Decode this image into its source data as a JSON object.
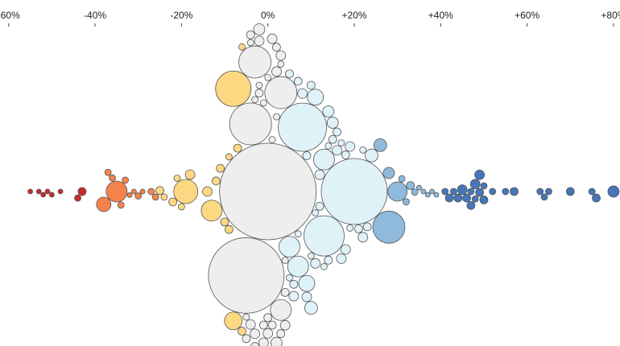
{
  "chart_data": {
    "type": "beeswarm",
    "xlim": [
      -62,
      81.5
    ],
    "xticks": [
      {
        "value": -60,
        "label": "-60%"
      },
      {
        "value": -40,
        "label": "-40%"
      },
      {
        "value": -20,
        "label": "-20%"
      },
      {
        "value": 0,
        "label": "0%"
      },
      {
        "value": 20,
        "label": "+20%"
      },
      {
        "value": 40,
        "label": "+40%"
      },
      {
        "value": 60,
        "label": "+60%"
      },
      {
        "value": 80,
        "label": "+80%"
      }
    ],
    "color_thresholds": [
      -40,
      -25,
      -5,
      5,
      25,
      40
    ],
    "colors": [
      "#c62a2a",
      "#f4834b",
      "#fdd882",
      "#eeeeee",
      "#dff2f8",
      "#8fbadb",
      "#4676b8"
    ],
    "values": [
      0,
      -5,
      20,
      8,
      -4,
      -8,
      -3,
      3,
      28,
      13,
      -19,
      -35,
      -13,
      30,
      13,
      5,
      3,
      7,
      -8,
      -38,
      9,
      11,
      24,
      26,
      28,
      80,
      -43,
      70,
      75,
      65,
      -6,
      -5,
      -4,
      -3,
      -2,
      -1,
      0,
      1,
      2,
      3,
      4,
      5,
      -5,
      -4,
      -3,
      -2,
      -1,
      0,
      1,
      2,
      3,
      4,
      -6,
      -2,
      0,
      2,
      4,
      -1,
      1,
      -3,
      5,
      3,
      -4,
      0,
      -2,
      2,
      6,
      7,
      8,
      9,
      10,
      11,
      12,
      14,
      15,
      16,
      17,
      18,
      19,
      21,
      22,
      6,
      7,
      9,
      10,
      12,
      14,
      16,
      18,
      11,
      13,
      15,
      17,
      19,
      10,
      14,
      22,
      23,
      32,
      33,
      31,
      34,
      35,
      36,
      37,
      38,
      39,
      41,
      42,
      43,
      44,
      45,
      46,
      47,
      48,
      49,
      50,
      47,
      48,
      49,
      50,
      52,
      55,
      57,
      63,
      64,
      76,
      -55,
      -53,
      -52,
      -51,
      -50,
      -48,
      -44,
      -36,
      -34,
      -33,
      -32,
      -31,
      -30,
      -29,
      -27,
      -26,
      -25,
      -37,
      -24,
      -22,
      -21,
      -20,
      -18,
      -14,
      -12,
      -11,
      -10,
      -9,
      -7,
      -9
    ],
    "sizes": [
      3600,
      2209,
      1681,
      900,
      676,
      484,
      400,
      400,
      400,
      625,
      225,
      169,
      169,
      144,
      169,
      169,
      169,
      169,
      121,
      81,
      100,
      100,
      64,
      64,
      49,
      49,
      25,
      25,
      16,
      16,
      25,
      16,
      36,
      16,
      25,
      16,
      25,
      16,
      36,
      16,
      25,
      16,
      25,
      16,
      36,
      16,
      25,
      16,
      25,
      16,
      36,
      16,
      16,
      36,
      36,
      25,
      36,
      36,
      36,
      25,
      25,
      25,
      25,
      49,
      49,
      49,
      25,
      16,
      36,
      25,
      16,
      36,
      25,
      16,
      25,
      36,
      16,
      25,
      16,
      25,
      16,
      36,
      25,
      36,
      25,
      36,
      25,
      25,
      36,
      16,
      16,
      49,
      36,
      36,
      64,
      49,
      36,
      25,
      16,
      25,
      16,
      16,
      9,
      9,
      9,
      9,
      9,
      16,
      25,
      16,
      25,
      36,
      25,
      16,
      36,
      25,
      16,
      25,
      16,
      36,
      25,
      16,
      16,
      25,
      16,
      16,
      25,
      9,
      9,
      9,
      9,
      9,
      9,
      16,
      16,
      16,
      16,
      9,
      9,
      16,
      9,
      16,
      16,
      25,
      16,
      16,
      25,
      16,
      16,
      36,
      36,
      25,
      25,
      25,
      16,
      25,
      25
    ]
  }
}
